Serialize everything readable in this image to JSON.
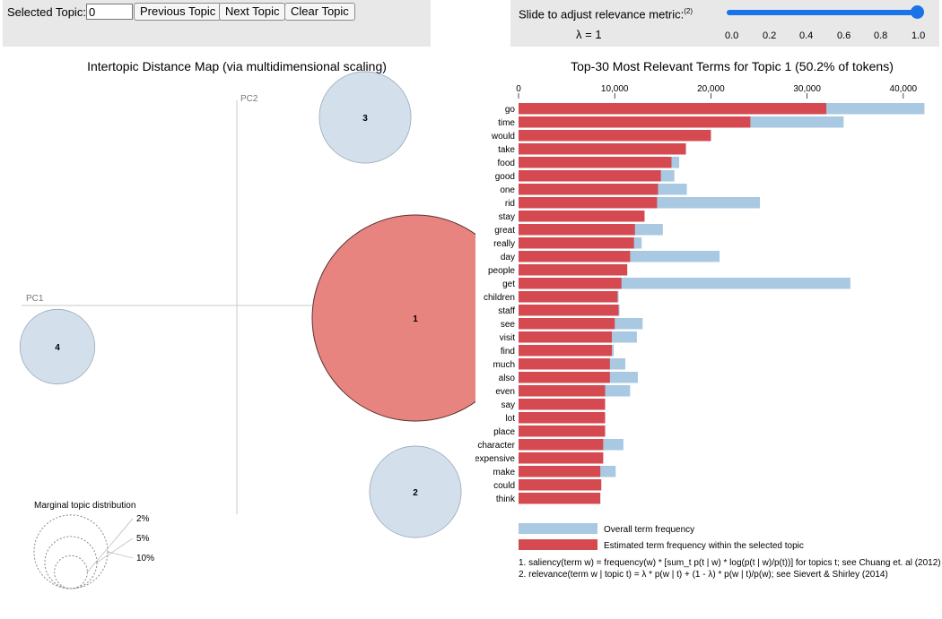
{
  "controls": {
    "selected_topic_label": "Selected Topic:",
    "selected_topic_value": "0",
    "prev_button": "Previous Topic",
    "next_button": "Next Topic",
    "clear_button": "Clear Topic",
    "slider_label": "Slide to adjust relevance metric:",
    "slider_footnote": "(2)",
    "lambda_label": "λ = 1",
    "slider_value": 1.0,
    "slider_ticks": [
      "0.0",
      "0.2",
      "0.4",
      "0.6",
      "0.8",
      "1.0"
    ],
    "accent_color": "#1a73e8"
  },
  "chart_data": [
    {
      "type": "scatter",
      "title": "Intertopic Distance Map (via multidimensional scaling)",
      "xlabel": "PC1",
      "ylabel": "PC2",
      "topics": [
        {
          "id": "1",
          "pc1": 0.199,
          "pc2": -0.014,
          "size_pct": 50.2,
          "selected": true
        },
        {
          "id": "2",
          "pc1": 0.199,
          "pc2": -0.208,
          "size_pct": 9.9,
          "selected": false
        },
        {
          "id": "3",
          "pc1": 0.143,
          "pc2": 0.21,
          "size_pct": 9.9,
          "selected": false
        },
        {
          "id": "4",
          "pc1": -0.2,
          "pc2": -0.046,
          "size_pct": 6.6,
          "selected": false
        }
      ],
      "selected_color": "#e8847f",
      "default_color": "#d3e0ec",
      "legend": {
        "title": "Marginal topic distribution",
        "entries": [
          {
            "label": "2%",
            "pct": 2
          },
          {
            "label": "5%",
            "pct": 5
          },
          {
            "label": "10%",
            "pct": 10
          }
        ]
      }
    },
    {
      "type": "bar",
      "orientation": "horizontal",
      "title": "Top-30 Most Relevant Terms for Topic 1 (50.2% of tokens)",
      "xlim": [
        0,
        43000
      ],
      "xticks": [
        0,
        10000,
        20000,
        30000,
        40000
      ],
      "xtick_labels": [
        "0",
        "10,000",
        "20,000",
        "30,000",
        "40,000"
      ],
      "categories": [
        "go",
        "time",
        "would",
        "take",
        "food",
        "good",
        "one",
        "rid",
        "stay",
        "great",
        "really",
        "day",
        "people",
        "get",
        "children",
        "staff",
        "see",
        "visit",
        "find",
        "much",
        "also",
        "even",
        "say",
        "lot",
        "place",
        "character",
        "expensive",
        "make",
        "could",
        "think"
      ],
      "series": [
        {
          "name": "Overall term frequency",
          "color": "#a9c8e1",
          "values": [
            42200,
            33800,
            20000,
            17400,
            16700,
            16200,
            17500,
            25100,
            13100,
            15000,
            12800,
            20900,
            11300,
            34500,
            10400,
            10500,
            12900,
            12300,
            9900,
            11100,
            12400,
            11600,
            9000,
            9000,
            9000,
            10900,
            8800,
            10100,
            8600,
            8500
          ]
        },
        {
          "name": "Estimated term frequency within the selected topic",
          "color": "#d44a50",
          "values": [
            32000,
            24100,
            20000,
            17400,
            15900,
            14800,
            14500,
            14400,
            13100,
            12100,
            12000,
            11600,
            11300,
            10700,
            10300,
            10400,
            10000,
            9700,
            9700,
            9500,
            9500,
            9000,
            9000,
            9000,
            9000,
            8800,
            8800,
            8500,
            8600,
            8500
          ]
        }
      ],
      "footnotes": [
        "1. saliency(term w) = frequency(w) * [sum_t p(t | w) * log(p(t | w)/p(t))] for topics t; see Chuang et. al (2012)",
        "2. relevance(term w | topic t) = λ * p(w | t) + (1 - λ) * p(w | t)/p(w); see Sievert & Shirley (2014)"
      ]
    }
  ]
}
